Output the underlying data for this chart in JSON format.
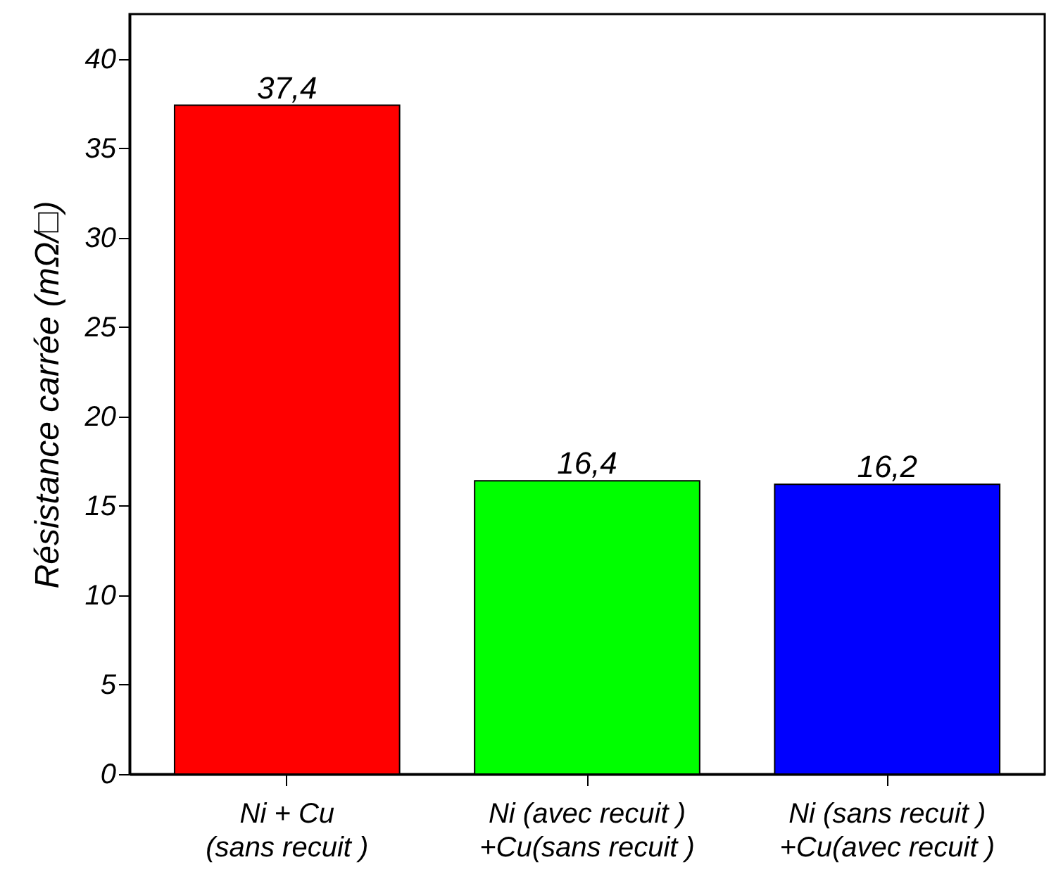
{
  "chart_data": {
    "type": "bar",
    "ylabel": "Résistance carrée (mΩ/□)",
    "categories": [
      "Ni + Cu\n(sans recuit )",
      "Ni (avec recuit )\n+Cu(sans recuit )",
      "Ni (sans recuit )\n+Cu(avec recuit )"
    ],
    "values": [
      37.4,
      16.4,
      16.2
    ],
    "colors": [
      "#ff0000",
      "#00ff00",
      "#0000ff"
    ],
    "value_labels": [
      "37,4",
      "16,4",
      "16,2"
    ],
    "ylim": [
      0,
      42.5
    ],
    "yticks": [
      0,
      5,
      10,
      15,
      20,
      25,
      30,
      35,
      40
    ],
    "grid": false
  }
}
